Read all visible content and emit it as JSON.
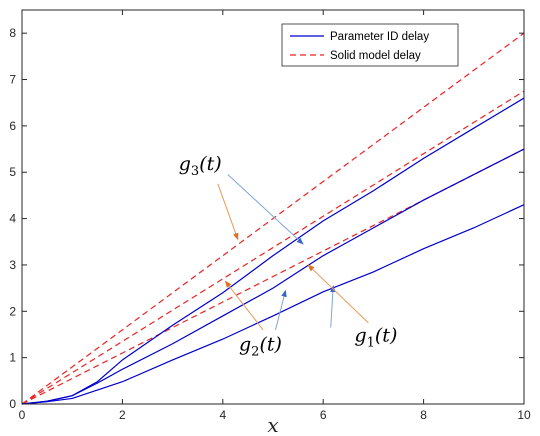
{
  "chart_data": {
    "type": "line",
    "title": "",
    "xlabel": "x",
    "ylabel": "",
    "xlim": [
      0,
      10
    ],
    "ylim": [
      0,
      8.5
    ],
    "xticks": [
      "0",
      "2",
      "4",
      "6",
      "8",
      "10"
    ],
    "yticks": [
      "0",
      "1",
      "2",
      "3",
      "4",
      "5",
      "6",
      "7",
      "8"
    ],
    "grid": false,
    "legend_position": "top-right",
    "legend": [
      {
        "label": "Parameter ID delay",
        "color": "#0000cc",
        "dash": "solid"
      },
      {
        "label": "Solid model delay",
        "color": "#ee2222",
        "dash": "dashed"
      }
    ],
    "series": [
      {
        "group": "Solid model delay",
        "color": "#ee2222",
        "dash": "dashed",
        "x": [
          0,
          2,
          4,
          6,
          8,
          10
        ],
        "y": [
          0,
          1.6,
          3.2,
          4.8,
          6.4,
          8.0
        ]
      },
      {
        "group": "Solid model delay",
        "color": "#ee2222",
        "dash": "dashed",
        "x": [
          0,
          2,
          4,
          6,
          8,
          10
        ],
        "y": [
          0,
          1.35,
          2.7,
          4.05,
          5.4,
          6.75
        ]
      },
      {
        "group": "Solid model delay",
        "color": "#ee2222",
        "dash": "dashed",
        "x": [
          0,
          2,
          4,
          6,
          8,
          10
        ],
        "y": [
          0,
          1.1,
          2.2,
          3.3,
          4.4,
          5.5
        ]
      },
      {
        "group": "Parameter ID delay",
        "color": "#0000cc",
        "dash": "solid",
        "x": [
          0,
          0.5,
          1.0,
          1.5,
          2,
          3,
          4,
          5,
          6,
          7,
          8,
          9,
          10
        ],
        "y": [
          0,
          0.06,
          0.18,
          0.48,
          0.95,
          1.7,
          2.4,
          3.2,
          3.95,
          4.6,
          5.3,
          5.95,
          6.6
        ]
      },
      {
        "group": "Parameter ID delay",
        "color": "#0000cc",
        "dash": "solid",
        "x": [
          0,
          0.5,
          1.0,
          1.5,
          2,
          3,
          4,
          5,
          6,
          7,
          8,
          9,
          10
        ],
        "y": [
          0,
          0.06,
          0.18,
          0.45,
          0.75,
          1.3,
          1.9,
          2.5,
          3.2,
          3.8,
          4.4,
          4.95,
          5.5
        ]
      },
      {
        "group": "Parameter ID delay",
        "color": "#0000cc",
        "dash": "solid",
        "x": [
          0,
          0.5,
          1.0,
          1.5,
          2,
          3,
          4,
          5,
          6,
          7,
          8,
          9,
          10
        ],
        "y": [
          0,
          0.05,
          0.12,
          0.3,
          0.48,
          0.95,
          1.4,
          1.9,
          2.42,
          2.85,
          3.35,
          3.8,
          4.3
        ]
      }
    ],
    "annotations": [
      {
        "label": "g",
        "sub": "3",
        "arg": "(t)",
        "tx": 3.55,
        "ty": 5.05,
        "arrows": [
          {
            "from": [
              4.1,
              4.95
            ],
            "to": [
              5.6,
              3.45
            ],
            "color": "#7fa6d6"
          },
          {
            "from": [
              3.9,
              4.75
            ],
            "to": [
              4.3,
              3.55
            ],
            "color": "#e89a5a"
          }
        ]
      },
      {
        "label": "g",
        "sub": "2",
        "arg": "(t)",
        "tx": 4.75,
        "ty": 1.15,
        "arrows": [
          {
            "from": [
              5.05,
              1.6
            ],
            "to": [
              5.25,
              2.45
            ],
            "color": "#7fa6d6"
          },
          {
            "from": [
              4.8,
              1.6
            ],
            "to": [
              4.05,
              2.65
            ],
            "color": "#e89a5a"
          }
        ]
      },
      {
        "label": "g",
        "sub": "1",
        "arg": "(t)",
        "tx": 7.05,
        "ty": 1.35,
        "arrows": [
          {
            "from": [
              6.15,
              1.65
            ],
            "to": [
              6.2,
              2.55
            ],
            "color": "#7fa6d6"
          },
          {
            "from": [
              6.9,
              1.75
            ],
            "to": [
              5.7,
              3.0
            ],
            "color": "#e89a5a"
          }
        ]
      }
    ]
  }
}
